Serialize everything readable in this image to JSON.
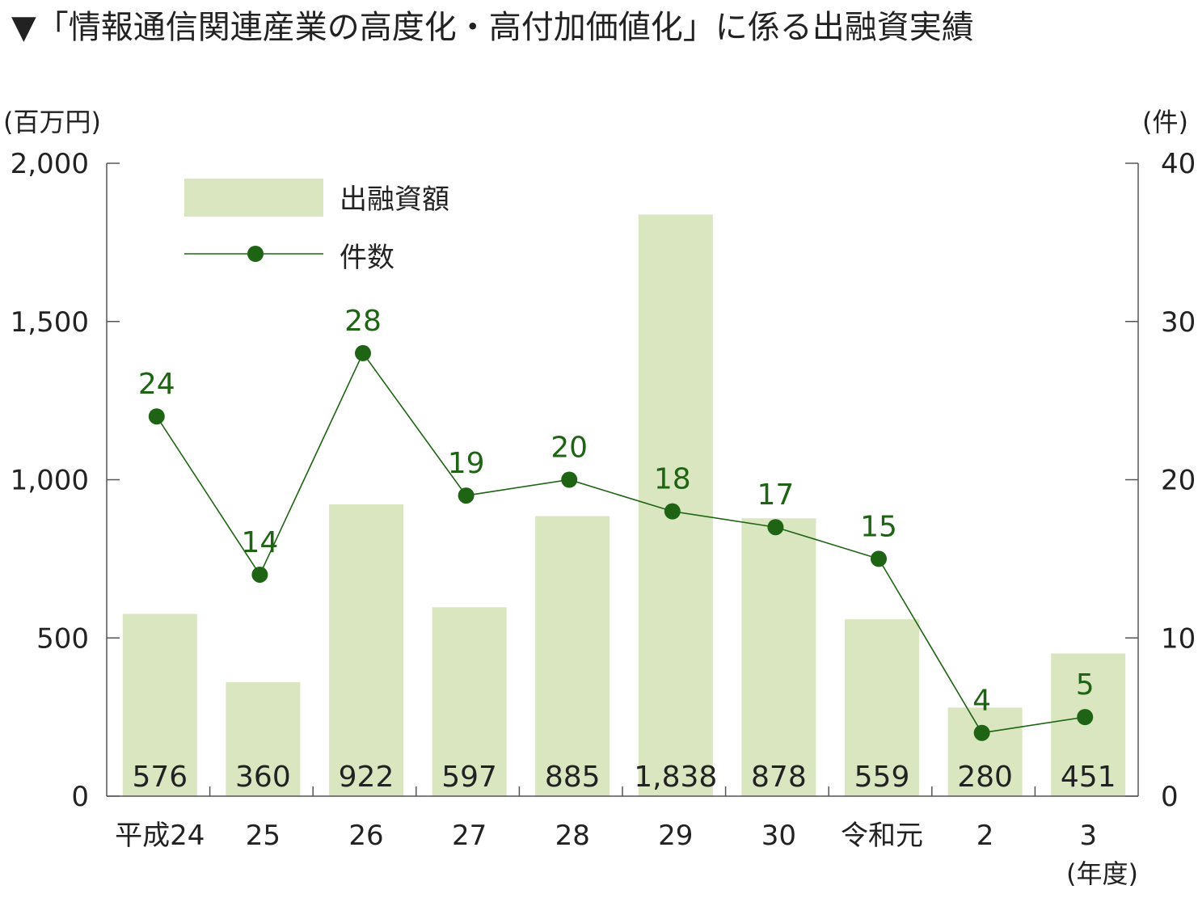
{
  "title": "▼「情報通信関連産業の高度化・高付加価値化」に係る出融資実績",
  "chart_data": {
    "type": "bar",
    "categories": [
      "平成24",
      "25",
      "26",
      "27",
      "28",
      "29",
      "30",
      "令和元",
      "2",
      "3"
    ],
    "x_unit": "(年度)",
    "series": [
      {
        "name": "出融資額",
        "type": "bar",
        "axis": "left",
        "values": [
          576,
          360,
          922,
          597,
          885,
          1838,
          878,
          559,
          280,
          451
        ],
        "labels": [
          "576",
          "360",
          "922",
          "597",
          "885",
          "1,838",
          "878",
          "559",
          "280",
          "451"
        ]
      },
      {
        "name": "件数",
        "type": "line",
        "axis": "right",
        "values": [
          24,
          14,
          28,
          19,
          20,
          18,
          17,
          15,
          4,
          5
        ]
      }
    ],
    "left_axis": {
      "unit": "(百万円)",
      "ylim": [
        0,
        2000
      ],
      "ticks": [
        0,
        500,
        1000,
        1500,
        2000
      ],
      "tick_labels": [
        "0",
        "500",
        "1,000",
        "1,500",
        "2,000"
      ]
    },
    "right_axis": {
      "unit": "(件)",
      "ylim": [
        0,
        40
      ],
      "ticks": [
        0,
        10,
        20,
        30,
        40
      ],
      "tick_labels": [
        "0",
        "10",
        "20",
        "30",
        "40"
      ]
    },
    "legend": {
      "position": "top-left",
      "entries": [
        "出融資額",
        "件数"
      ]
    },
    "colors": {
      "bar": "#d9e6bf",
      "line": "#1f6414",
      "axis": "#555555"
    }
  }
}
